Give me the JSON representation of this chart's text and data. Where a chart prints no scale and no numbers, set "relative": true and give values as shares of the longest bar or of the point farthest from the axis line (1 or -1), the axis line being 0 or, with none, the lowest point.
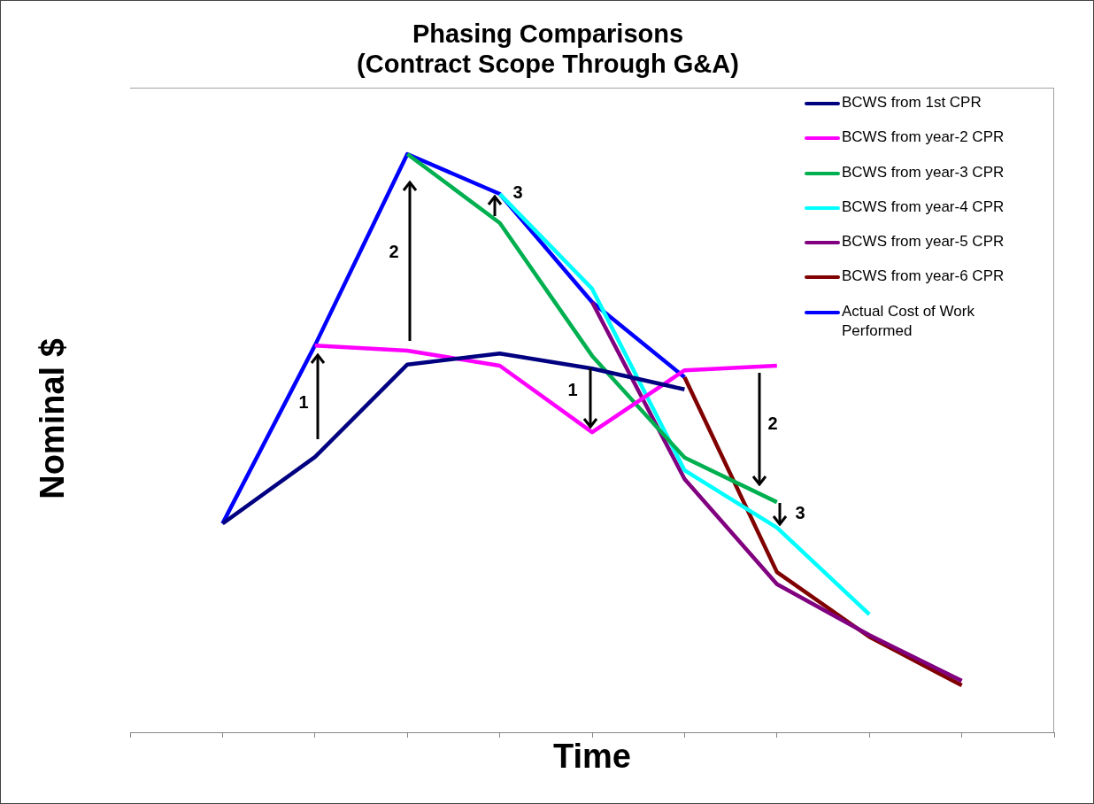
{
  "chart_data": {
    "type": "line",
    "title": "Phasing Comparisons",
    "subtitle": "(Contract Scope Through G&A)",
    "xlabel": "Time",
    "ylabel": "Nominal $",
    "relative": true,
    "legend": "top right",
    "grid": false,
    "categories": [
      null,
      null,
      null,
      null,
      null,
      null,
      null,
      null,
      null,
      null,
      null
    ],
    "series": [
      {
        "name": "BCWS from 1st CPR",
        "color": "#000080",
        "values": [
          null,
          0.361,
          0.476,
          0.636,
          0.655,
          0.629,
          0.593,
          null,
          null,
          null,
          null
        ]
      },
      {
        "name": "BCWS from year-2 CPR",
        "color": "#ff00ff",
        "values": [
          null,
          null,
          0.669,
          0.66,
          0.634,
          0.519,
          0.626,
          0.634,
          null,
          null,
          null
        ]
      },
      {
        "name": "BCWS from year-3 CPR",
        "color": "#00b050",
        "values": [
          null,
          null,
          null,
          1.0,
          0.881,
          0.651,
          0.475,
          0.398,
          null,
          null,
          null
        ]
      },
      {
        "name": "BCWS from year-4 CPR",
        "color": "#00ffff",
        "values": [
          null,
          null,
          null,
          null,
          0.931,
          0.767,
          0.453,
          0.354,
          0.204,
          null,
          null
        ]
      },
      {
        "name": "BCWS from year-5 CPR",
        "color": "#800080",
        "values": [
          null,
          null,
          null,
          null,
          null,
          0.744,
          0.438,
          0.256,
          0.168,
          0.089,
          null
        ]
      },
      {
        "name": "BCWS from year-6 CPR",
        "color": "#800000",
        "values": [
          null,
          null,
          null,
          null,
          null,
          null,
          0.614,
          0.277,
          0.165,
          0.081,
          null
        ]
      },
      {
        "name": "Actual Cost of Work Performed",
        "color": "#0000ff",
        "values": [
          null,
          0.361,
          0.669,
          1.0,
          0.931,
          0.744,
          0.614,
          null,
          null,
          null,
          null
        ]
      }
    ],
    "annotations": [
      "1",
      "2",
      "3",
      "1",
      "2",
      "3"
    ]
  }
}
